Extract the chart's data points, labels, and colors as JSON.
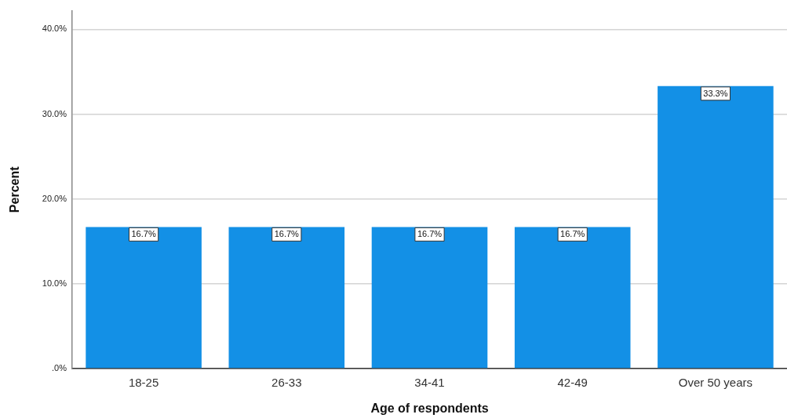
{
  "chart_data": {
    "type": "bar",
    "xlabel": "Age of respondents",
    "ylabel": "Percent",
    "categories": [
      "18-25",
      "26-33",
      "34-41",
      "42-49",
      "Over 50 years"
    ],
    "values": [
      16.7,
      16.7,
      16.7,
      16.7,
      33.3
    ],
    "value_labels": [
      "16.7%",
      "16.7%",
      "16.7%",
      "16.7%",
      "33.3%"
    ],
    "color": "#1390e6",
    "ylim": [
      0,
      42.2
    ],
    "yticks": [
      {
        "value": 0,
        "label": ".0%"
      },
      {
        "value": 10,
        "label": "10.0%"
      },
      {
        "value": 20,
        "label": "20.0%"
      },
      {
        "value": 30,
        "label": "30.0%"
      },
      {
        "value": 40,
        "label": "40.0%"
      }
    ],
    "grid": "y"
  }
}
